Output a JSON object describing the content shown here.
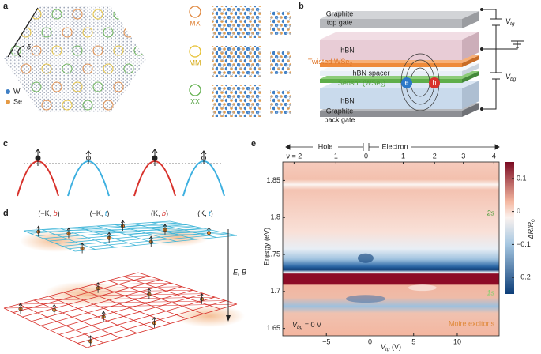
{
  "panel_labels": [
    "a",
    "b",
    "c",
    "d",
    "e"
  ],
  "a": {
    "delta": "δ",
    "legend": [
      "W",
      "Se"
    ],
    "stackings": [
      "MX",
      "MM",
      "XX"
    ]
  },
  "b": {
    "top_gate": [
      "Graphite",
      "top gate"
    ],
    "hbn_top": "hBN",
    "twisted": [
      "Twisted WSe",
      "2"
    ],
    "spacer": "hBN spacer",
    "sensor": [
      "Sensor (WSe",
      "2",
      ")"
    ],
    "hbn_bottom": "hBN",
    "back_gate": [
      "Graphite",
      "back gate"
    ],
    "electron": "e",
    "hole": "h",
    "vtg": [
      "V",
      "tg"
    ],
    "vbg": [
      "V",
      "bg"
    ]
  },
  "c": {
    "labels": [
      [
        "(−K, ",
        "b",
        ")"
      ],
      [
        "(−K, ",
        "t",
        ")"
      ],
      [
        "(K, ",
        "b",
        ")"
      ],
      [
        "(K, ",
        "t",
        ")"
      ]
    ]
  },
  "d": {
    "field": "E, B"
  },
  "e": {
    "hole": "Hole",
    "electron": "Electron",
    "xlabel": [
      "V",
      "tg",
      " (V)"
    ],
    "ylabel": "Energy (eV)",
    "cbar_label": [
      "ΔR/R",
      "0"
    ],
    "vbg": [
      "V",
      "bg",
      " = 0 V"
    ],
    "annotations": [
      "2s",
      "1s",
      "Moire excitons"
    ],
    "xlim": [
      -10,
      14.8
    ],
    "xticks": [
      {
        "value": -5,
        "label": "−5"
      },
      0,
      5,
      10
    ],
    "ylim": [
      1.64,
      1.875
    ],
    "yticks": [
      1.65,
      1.7,
      1.75,
      1.8,
      1.85
    ],
    "nu_ticks": [
      {
        "value": -8.7,
        "label": "ν = 2"
      },
      {
        "value": -3.9,
        "label": "1"
      },
      {
        "value": -0.45,
        "label": "0"
      },
      {
        "value": 3.8,
        "label": "1"
      },
      {
        "value": 7.4,
        "label": "2"
      },
      {
        "value": 10.7,
        "label": "3"
      },
      {
        "value": 14.2,
        "label": "4"
      }
    ],
    "clim": [
      -0.25,
      0.15
    ],
    "cticks": [
      0.1,
      0,
      {
        "value": -0.1,
        "label": "−0.1"
      },
      {
        "value": -0.2,
        "label": "−0.2"
      }
    ]
  }
}
